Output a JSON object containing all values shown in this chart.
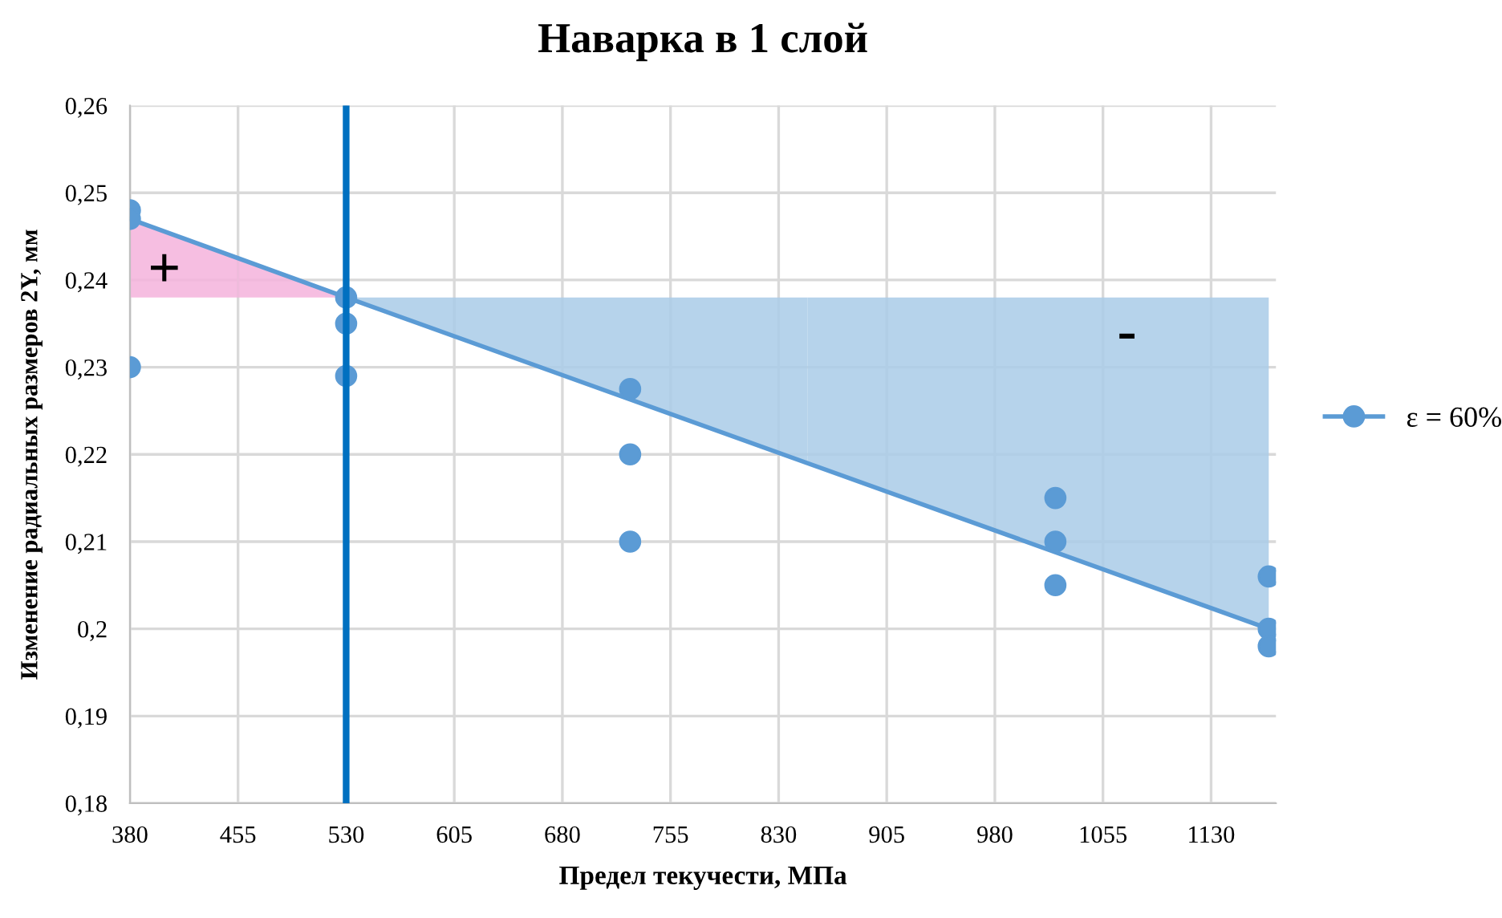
{
  "chart_data": {
    "type": "scatter",
    "title": "Наварка в 1 слой",
    "xlabel": "Предел текучести, МПа",
    "ylabel": "Изменение радиальных размеров 2Y, мм",
    "x": [
      380,
      380,
      380,
      530,
      530,
      530,
      727,
      727,
      727,
      1022,
      1022,
      1022,
      1170,
      1170,
      1170
    ],
    "series": [
      {
        "name": "ε = 60%",
        "marker": "circle",
        "color": "#5b9bd5",
        "values": [
          0.248,
          0.247,
          0.23,
          0.238,
          0.235,
          0.229,
          0.2275,
          0.22,
          0.21,
          0.215,
          0.21,
          0.205,
          0.206,
          0.2,
          0.198
        ]
      },
      {
        "type": "line",
        "color": "#5b9bd5",
        "x": [
          380,
          530
        ],
        "values": [
          0.247,
          0.238
        ],
        "lower": [
          0.238,
          0.238
        ],
        "upper": [
          0.247,
          0.238
        ],
        "colors": [
          "#f4b3dc",
          "#f4b3dc"
        ]
      },
      {
        "type": "line",
        "color": "#5b9bd5",
        "x": [
          530,
          1170
        ],
        "values": [
          0.238,
          0.2
        ],
        "lower": [
          0.238,
          0.2
        ],
        "upper": [
          0.238,
          0.238
        ],
        "colors": [
          "#a9cbe8",
          "#a9cbe8"
        ]
      }
    ],
    "ref_lines": [
      {
        "axis": "x",
        "value": 530,
        "color": "#0070c0"
      }
    ],
    "annotations": [
      "+",
      "-"
    ],
    "xlim": [
      380,
      1175
    ],
    "xticks": [
      380,
      455,
      530,
      605,
      680,
      755,
      830,
      905,
      980,
      1055,
      1130
    ],
    "ylim": [
      0.18,
      0.26
    ],
    "yticks": [
      {
        "value": 0.18,
        "label": "0,18"
      },
      {
        "value": 0.19,
        "label": "0,19"
      },
      {
        "value": 0.2,
        "label": "0,2"
      },
      {
        "value": 0.21,
        "label": "0,21"
      },
      {
        "value": 0.22,
        "label": "0,22"
      },
      {
        "value": 0.23,
        "label": "0,23"
      },
      {
        "value": 0.24,
        "label": "0,24"
      },
      {
        "value": 0.25,
        "label": "0,25"
      },
      {
        "value": 0.26,
        "label": "0,26"
      }
    ],
    "grid": true,
    "legend": "right"
  }
}
